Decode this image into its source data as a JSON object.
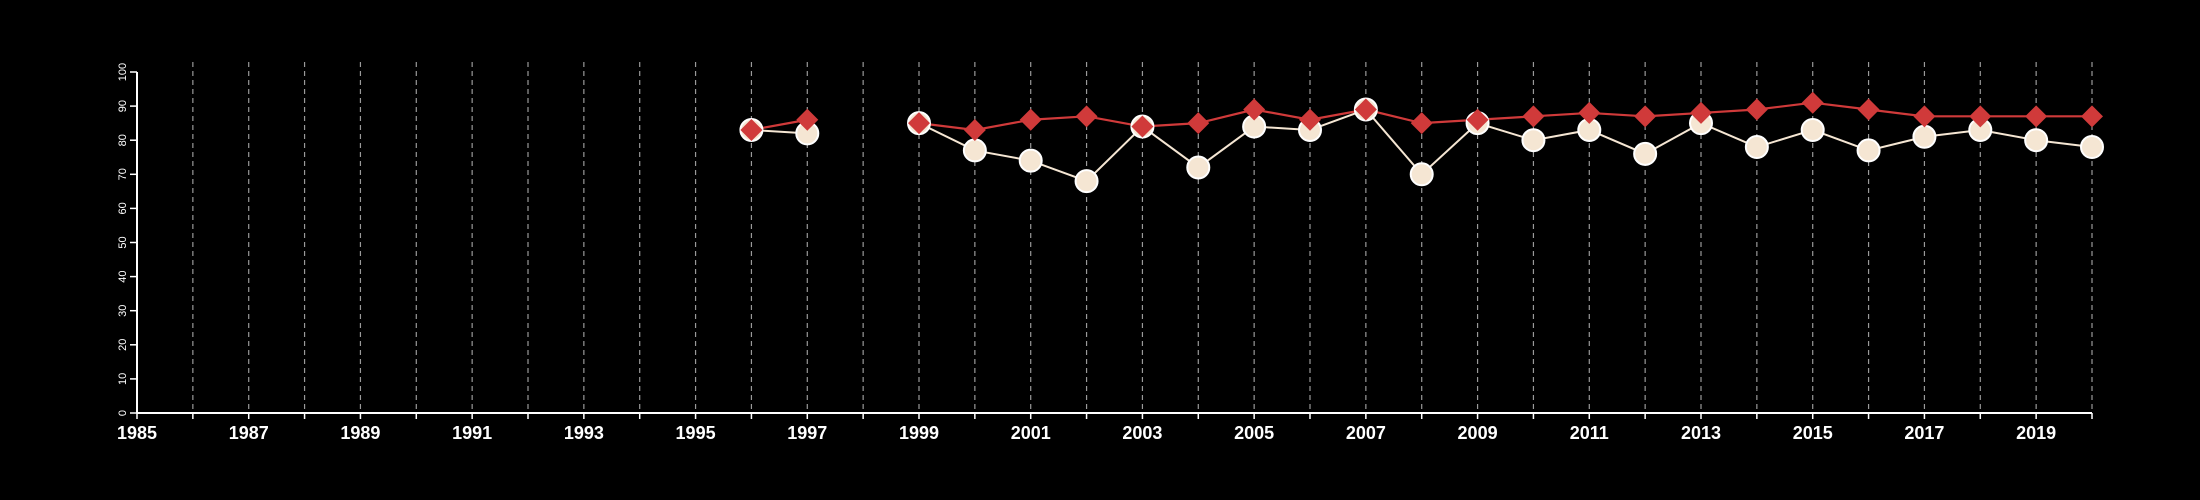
{
  "chart_data": {
    "type": "line",
    "title": "",
    "xlabel": "",
    "ylabel": "",
    "xlim": [
      1985,
      2020
    ],
    "ylim": [
      0,
      100
    ],
    "x_ticks": [
      "1985",
      "1987",
      "1989",
      "1991",
      "1993",
      "1995",
      "1997",
      "1999",
      "2001",
      "2003",
      "2005",
      "2007",
      "2009",
      "2011",
      "2013",
      "2015",
      "2017",
      "2019"
    ],
    "y_ticks": [
      "0",
      "10",
      "20",
      "30",
      "40",
      "50",
      "60",
      "70",
      "80",
      "90",
      "100"
    ],
    "vertical_gridlines": "dashed at every year",
    "legend": "none",
    "series": [
      {
        "marker": "diamond",
        "color": "#d03a3a",
        "x": [
          1996,
          1997,
          1999,
          2000,
          2001,
          2002,
          2003,
          2004,
          2005,
          2006,
          2007,
          2008,
          2009,
          2010,
          2011,
          2012,
          2013,
          2014,
          2015,
          2016,
          2017,
          2018,
          2019,
          2020
        ],
        "y": [
          83,
          86,
          85,
          83,
          86,
          87,
          84,
          85,
          89,
          86,
          89,
          85,
          86,
          87,
          88,
          87,
          88,
          89,
          91,
          89,
          87,
          87,
          87,
          87
        ]
      },
      {
        "marker": "circle",
        "color": "#f5e6d3",
        "x": [
          1996,
          1997,
          1999,
          2000,
          2001,
          2002,
          2003,
          2004,
          2005,
          2006,
          2007,
          2008,
          2009,
          2010,
          2011,
          2012,
          2013,
          2014,
          2015,
          2016,
          2017,
          2018,
          2019,
          2020
        ],
        "y": [
          83,
          82,
          85,
          77,
          74,
          68,
          84,
          72,
          84,
          83,
          89,
          70,
          85,
          80,
          83,
          76,
          85,
          78,
          83,
          77,
          81,
          83,
          80,
          78
        ]
      }
    ]
  }
}
